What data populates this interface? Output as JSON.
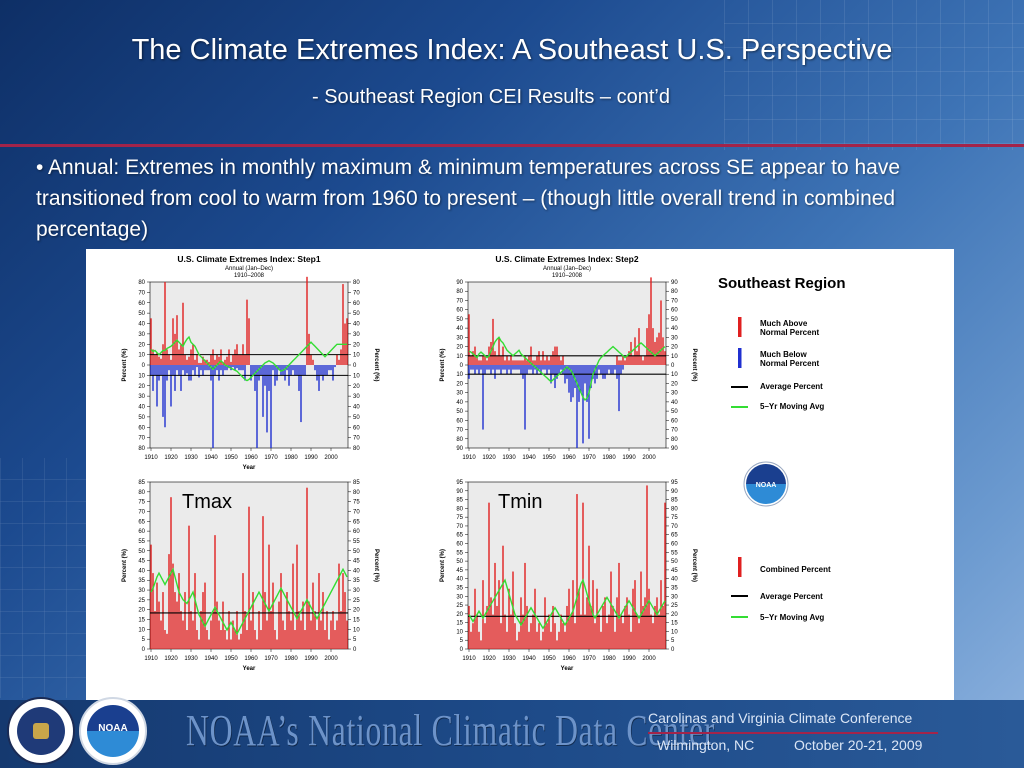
{
  "slide": {
    "title": "The Climate Extremes Index:  A Southeast U.S. Perspective",
    "subtitle": "- Southeast Region CEI Results – cont’d",
    "bullet": "•  Annual:  Extremes in monthly maximum & minimum temperatures across SE appear to have transitioned from cool to warm from 1960 to present – (though little overall trend in combined percentage)"
  },
  "figure": {
    "region_label": "Southeast Region",
    "tmax_label": "Tmax",
    "tmin_label": "Tmin",
    "legend_top": [
      {
        "label_1": "Much Above",
        "label_2": "Normal Percent",
        "color": "#e02020",
        "kind": "bar"
      },
      {
        "label_1": "Much Below",
        "label_2": "Normal Percent",
        "color": "#2030d0",
        "kind": "bar"
      },
      {
        "label_1": "Average Percent",
        "label_2": "",
        "color": "#000000",
        "kind": "line"
      },
      {
        "label_1": "5–Yr Moving Avg",
        "label_2": "",
        "color": "#33dd33",
        "kind": "line"
      }
    ],
    "legend_bottom": [
      {
        "label_1": "Combined Percent",
        "color": "#e02020",
        "kind": "bar"
      },
      {
        "label_1": "Average Percent",
        "color": "#000000",
        "kind": "line"
      },
      {
        "label_1": "5–Yr Moving Avg",
        "color": "#33dd33",
        "kind": "line"
      }
    ],
    "noaa_logo_text": "NOAA"
  },
  "chart_data": [
    {
      "type": "bar",
      "title": "U.S. Climate Extremes Index: Step1",
      "subtitle_1": "Annual (Jan–Dec)",
      "subtitle_2": "1910–2008",
      "xlabel": "Year",
      "ylabel": "Percent (%)",
      "diverging": true,
      "x_ticks": [
        "1910",
        "1920",
        "1930",
        "1940",
        "1950",
        "1960",
        "1970",
        "1980",
        "1990",
        "2000"
      ],
      "y_ticks": [
        "80",
        "70",
        "60",
        "50",
        "40",
        "30",
        "20",
        "10",
        "0",
        "10",
        "20",
        "30",
        "40",
        "50",
        "60",
        "70",
        "80"
      ],
      "ylim": [
        -80,
        80
      ],
      "average_above": 10,
      "average_below": -10,
      "above": [
        45,
        15,
        10,
        12,
        8,
        6,
        20,
        80,
        15,
        10,
        5,
        45,
        30,
        48,
        15,
        20,
        60,
        10,
        5,
        8,
        15,
        20,
        5,
        10,
        2,
        2,
        8,
        5,
        5,
        3,
        10,
        15,
        5,
        10,
        8,
        15,
        3,
        5,
        8,
        15,
        3,
        10,
        15,
        20,
        10,
        10,
        20,
        10,
        63,
        45,
        0,
        0,
        0,
        0,
        0,
        0,
        0,
        0,
        0,
        0,
        0,
        0,
        0,
        0,
        0,
        0,
        0,
        0,
        0,
        0,
        0,
        0,
        0,
        0,
        0,
        0,
        0,
        0,
        85,
        30,
        10,
        5,
        0,
        0,
        0,
        0,
        0,
        0,
        0,
        0,
        0,
        0,
        0,
        10,
        5,
        15,
        78,
        40,
        45
      ],
      "below": [
        10,
        25,
        10,
        40,
        15,
        10,
        50,
        60,
        15,
        5,
        40,
        10,
        25,
        5,
        10,
        25,
        5,
        10,
        8,
        15,
        15,
        5,
        10,
        2,
        12,
        5,
        10,
        5,
        5,
        5,
        15,
        80,
        10,
        5,
        15,
        5,
        10,
        5,
        5,
        3,
        5,
        2,
        5,
        3,
        5,
        5,
        5,
        15,
        0,
        0,
        15,
        10,
        25,
        80,
        15,
        10,
        50,
        20,
        65,
        25,
        80,
        5,
        20,
        15,
        5,
        10,
        10,
        15,
        5,
        20,
        10,
        5,
        10,
        10,
        25,
        55,
        10,
        10,
        0,
        0,
        0,
        0,
        5,
        15,
        25,
        10,
        15,
        10,
        10,
        5,
        5,
        15,
        2,
        0,
        0,
        0,
        0,
        0,
        0
      ],
      "moving_avg": [
        15,
        13,
        14,
        12,
        10,
        12,
        14,
        14,
        16,
        17,
        18,
        20,
        22,
        24,
        22,
        20,
        18,
        22,
        25,
        27,
        22,
        20,
        18,
        14,
        10,
        8,
        6,
        4,
        2,
        0,
        -2,
        -4,
        -2,
        0,
        2,
        4,
        2,
        0,
        -1,
        -2,
        -3,
        -4,
        -5,
        -6,
        -8,
        -10,
        -12,
        -14,
        -15,
        -14,
        -12,
        -10,
        -8,
        -6,
        -4,
        -2,
        0,
        2,
        3,
        4,
        3,
        2,
        0,
        -2,
        -4,
        -6,
        -5,
        -4,
        -2,
        0,
        2,
        4,
        6,
        8,
        10,
        12,
        14,
        16,
        18,
        20,
        22,
        20,
        18,
        16,
        14,
        12,
        10,
        8,
        10,
        12,
        14,
        16,
        18,
        20,
        20,
        20,
        20,
        20,
        20
      ]
    },
    {
      "type": "bar",
      "title": "U.S. Climate Extremes Index: Step2",
      "subtitle_1": "Annual (Jan–Dec)",
      "subtitle_2": "1910–2008",
      "xlabel": "",
      "ylabel": "Percent (%)",
      "diverging": true,
      "x_ticks": [
        "1910",
        "1920",
        "1930",
        "1940",
        "1950",
        "1960",
        "1970",
        "1980",
        "1990",
        "2000"
      ],
      "y_ticks": [
        "90",
        "80",
        "70",
        "60",
        "50",
        "40",
        "30",
        "20",
        "10",
        "0",
        "10",
        "20",
        "30",
        "40",
        "50",
        "60",
        "70",
        "80",
        "90"
      ],
      "ylim": [
        -90,
        90
      ],
      "average_above": 10,
      "average_below": -10,
      "above": [
        55,
        10,
        15,
        20,
        10,
        5,
        5,
        10,
        10,
        5,
        20,
        25,
        50,
        15,
        10,
        30,
        10,
        20,
        5,
        10,
        5,
        10,
        5,
        5,
        5,
        5,
        5,
        5,
        10,
        5,
        10,
        20,
        5,
        5,
        10,
        15,
        5,
        15,
        5,
        10,
        5,
        10,
        15,
        20,
        20,
        10,
        5,
        10,
        0,
        0,
        0,
        0,
        0,
        0,
        0,
        0,
        0,
        0,
        0,
        0,
        0,
        0,
        0,
        0,
        0,
        0,
        0,
        0,
        0,
        0,
        0,
        0,
        0,
        0,
        10,
        5,
        5,
        10,
        5,
        10,
        15,
        25,
        10,
        30,
        15,
        40,
        10,
        5,
        10,
        40,
        55,
        95,
        40,
        25,
        30,
        35,
        70,
        30,
        15
      ],
      "below": [
        15,
        5,
        5,
        10,
        5,
        10,
        5,
        70,
        10,
        5,
        5,
        10,
        5,
        15,
        5,
        5,
        10,
        5,
        5,
        10,
        5,
        10,
        5,
        5,
        5,
        5,
        10,
        15,
        70,
        10,
        5,
        5,
        10,
        5,
        10,
        5,
        10,
        5,
        5,
        10,
        5,
        20,
        10,
        25,
        15,
        10,
        5,
        10,
        20,
        15,
        30,
        40,
        35,
        25,
        90,
        40,
        30,
        85,
        20,
        40,
        80,
        25,
        15,
        20,
        15,
        5,
        10,
        15,
        15,
        10,
        5,
        10,
        10,
        5,
        15,
        50,
        10,
        5,
        0,
        0,
        0,
        0,
        0,
        0,
        0,
        0,
        0,
        0,
        0,
        0,
        0,
        0,
        0,
        0,
        0,
        0,
        0,
        0,
        0
      ],
      "moving_avg": [
        15,
        14,
        12,
        10,
        8,
        12,
        14,
        12,
        10,
        8,
        10,
        15,
        20,
        25,
        28,
        30,
        26,
        24,
        20,
        16,
        14,
        12,
        10,
        12,
        14,
        16,
        12,
        10,
        8,
        6,
        4,
        2,
        0,
        -2,
        -4,
        -6,
        -8,
        -10,
        -12,
        -14,
        -16,
        -18,
        -16,
        -14,
        -12,
        -10,
        -8,
        -6,
        -4,
        -2,
        -4,
        -6,
        -10,
        -15,
        -20,
        -25,
        -30,
        -35,
        -38,
        -36,
        -30,
        -20,
        -10,
        -5,
        0,
        5,
        8,
        10,
        12,
        14,
        16,
        18,
        20,
        18,
        16,
        14,
        12,
        10,
        8,
        10,
        12,
        14,
        16,
        18,
        20,
        22,
        24,
        22,
        20,
        18,
        16,
        14,
        12,
        10,
        12,
        14,
        16,
        18,
        20
      ]
    },
    {
      "type": "bar",
      "title": "",
      "xlabel": "Year",
      "ylabel": "Percent (%)",
      "diverging": false,
      "x_ticks": [
        "1910",
        "1920",
        "1930",
        "1940",
        "1950",
        "1960",
        "1970",
        "1980",
        "1990",
        "2000"
      ],
      "y_ticks": [
        "85",
        "80",
        "75",
        "70",
        "65",
        "60",
        "55",
        "50",
        "45",
        "40",
        "35",
        "30",
        "25",
        "20",
        "15",
        "10",
        "5",
        "0"
      ],
      "ylim": [
        0,
        88
      ],
      "average": 19,
      "values": [
        55,
        40,
        20,
        35,
        25,
        15,
        30,
        10,
        8,
        50,
        80,
        45,
        30,
        25,
        40,
        20,
        15,
        30,
        10,
        65,
        20,
        15,
        40,
        10,
        5,
        20,
        30,
        35,
        10,
        5,
        15,
        20,
        60,
        25,
        15,
        10,
        25,
        10,
        5,
        20,
        5,
        15,
        10,
        20,
        5,
        8,
        40,
        20,
        10,
        75,
        15,
        30,
        10,
        5,
        20,
        10,
        70,
        30,
        15,
        55,
        20,
        35,
        10,
        5,
        25,
        40,
        15,
        10,
        30,
        20,
        15,
        45,
        10,
        55,
        20,
        15,
        25,
        10,
        85,
        25,
        15,
        35,
        20,
        10,
        40,
        15,
        30,
        10,
        20,
        5,
        15,
        20,
        10,
        15,
        45,
        20,
        40,
        30,
        15
      ],
      "moving_avg": [
        30,
        32,
        35,
        38,
        40,
        38,
        36,
        34,
        36,
        38,
        40,
        42,
        38,
        34,
        30,
        28,
        26,
        25,
        24,
        26,
        28,
        30,
        26,
        22,
        18,
        16,
        14,
        12,
        14,
        16,
        18,
        20,
        22,
        20,
        18,
        16,
        14,
        12,
        10,
        12,
        14,
        12,
        10,
        8,
        10,
        12,
        14,
        16,
        18,
        20,
        22,
        24,
        26,
        28,
        30,
        28,
        26,
        24,
        22,
        20,
        22,
        24,
        26,
        28,
        30,
        32,
        30,
        28,
        26,
        24,
        22,
        20,
        18,
        16,
        18,
        20,
        22,
        24,
        26,
        24,
        22,
        20,
        18,
        16,
        18,
        20,
        22,
        24,
        26,
        28,
        30,
        32,
        34,
        36,
        38,
        40,
        42,
        40,
        38
      ]
    },
    {
      "type": "bar",
      "title": "",
      "xlabel": "Year",
      "ylabel": "Percent (%)",
      "diverging": false,
      "x_ticks": [
        "1910",
        "1920",
        "1930",
        "1940",
        "1950",
        "1960",
        "1970",
        "1980",
        "1990",
        "2000"
      ],
      "y_ticks": [
        "95",
        "90",
        "85",
        "80",
        "75",
        "70",
        "65",
        "60",
        "55",
        "50",
        "45",
        "40",
        "35",
        "30",
        "25",
        "20",
        "15",
        "10",
        "5",
        "0"
      ],
      "ylim": [
        0,
        97
      ],
      "average": 19,
      "values": [
        25,
        10,
        15,
        35,
        20,
        10,
        5,
        40,
        15,
        25,
        85,
        30,
        20,
        50,
        25,
        40,
        15,
        60,
        20,
        10,
        35,
        20,
        45,
        15,
        5,
        10,
        30,
        20,
        50,
        25,
        10,
        15,
        20,
        35,
        10,
        15,
        5,
        10,
        30,
        15,
        20,
        10,
        25,
        15,
        5,
        10,
        20,
        15,
        10,
        25,
        35,
        20,
        40,
        15,
        90,
        35,
        20,
        85,
        20,
        30,
        60,
        25,
        40,
        15,
        35,
        20,
        10,
        25,
        30,
        15,
        20,
        45,
        25,
        10,
        30,
        50,
        20,
        15,
        25,
        30,
        20,
        10,
        35,
        40,
        20,
        15,
        45,
        25,
        30,
        95,
        35,
        20,
        15,
        25,
        30,
        20,
        40,
        25,
        85
      ],
      "moving_avg": [
        20,
        18,
        16,
        18,
        20,
        22,
        20,
        18,
        20,
        22,
        24,
        26,
        28,
        30,
        32,
        34,
        36,
        38,
        40,
        36,
        32,
        28,
        24,
        20,
        18,
        16,
        14,
        16,
        18,
        20,
        22,
        24,
        22,
        20,
        18,
        16,
        14,
        12,
        14,
        16,
        18,
        20,
        22,
        24,
        22,
        20,
        18,
        16,
        14,
        16,
        18,
        20,
        22,
        26,
        30,
        34,
        38,
        40,
        36,
        32,
        28,
        24,
        20,
        18,
        20,
        22,
        24,
        26,
        28,
        30,
        28,
        26,
        24,
        22,
        20,
        18,
        20,
        22,
        24,
        26,
        28,
        26,
        24,
        22,
        20,
        18,
        20,
        22,
        24,
        26,
        28,
        26,
        24,
        22,
        20,
        22,
        24,
        26,
        28
      ]
    }
  ]
}
